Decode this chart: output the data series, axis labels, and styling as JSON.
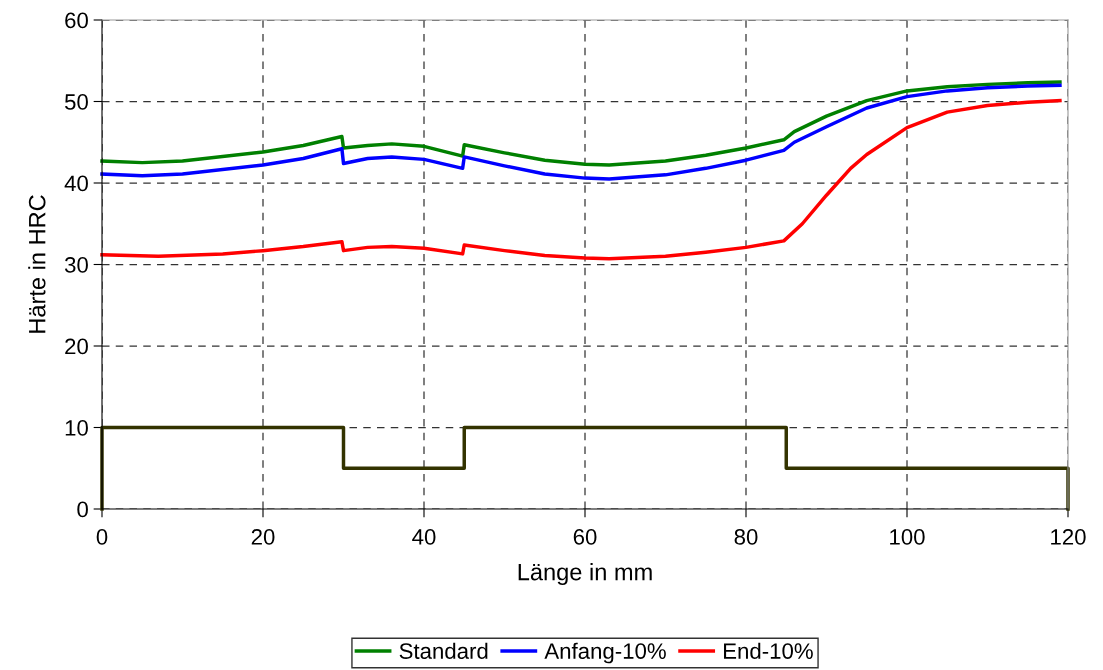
{
  "chart_data": {
    "type": "line",
    "xlabel": "Länge in mm",
    "ylabel": "Härte in HRC",
    "xlim": [
      0,
      120
    ],
    "xticks": [
      0,
      20,
      40,
      60,
      80,
      100,
      120
    ],
    "ylim": [
      0,
      60
    ],
    "yticks": [
      0,
      10,
      20,
      30,
      40,
      50,
      60
    ],
    "grid": true,
    "legend": "bottom",
    "marker": "none",
    "line_style": "solid",
    "series": [
      {
        "name": "Standard",
        "color": "#008000",
        "x": [
          0,
          5,
          10,
          20,
          25,
          29.8,
          30,
          33,
          36,
          40,
          44.8,
          45,
          50,
          55,
          60,
          63,
          70,
          75,
          80,
          84.7,
          86,
          90,
          95,
          100,
          105,
          110,
          115,
          119
        ],
        "values": [
          42.7,
          42.5,
          42.7,
          43.8,
          44.6,
          45.7,
          44.3,
          44.6,
          44.8,
          44.5,
          43.3,
          44.7,
          43.7,
          42.8,
          42.3,
          42.2,
          42.7,
          43.4,
          44.3,
          45.3,
          46.3,
          48.2,
          50.1,
          51.3,
          51.8,
          52.1,
          52.3,
          52.4
        ]
      },
      {
        "name": "Anfang-10%",
        "color": "#0000ff",
        "x": [
          0,
          5,
          10,
          20,
          25,
          29.8,
          30,
          33,
          36,
          40,
          44.8,
          45,
          50,
          55,
          60,
          63,
          70,
          75,
          80,
          84.7,
          86,
          90,
          95,
          100,
          105,
          110,
          115,
          119
        ],
        "values": [
          41.1,
          40.9,
          41.1,
          42.2,
          43.0,
          44.2,
          42.4,
          43.0,
          43.2,
          42.9,
          41.8,
          43.2,
          42.1,
          41.1,
          40.6,
          40.5,
          41.0,
          41.8,
          42.8,
          44.0,
          45.0,
          46.9,
          49.2,
          50.6,
          51.3,
          51.7,
          51.9,
          52.0
        ]
      },
      {
        "name": "End-10%",
        "color": "#ff0000",
        "x": [
          0,
          7,
          15,
          20,
          25,
          29.8,
          30,
          33,
          36,
          40,
          44.8,
          45,
          50,
          55,
          60,
          63,
          70,
          75,
          80,
          84.7,
          87,
          90,
          93,
          95,
          100,
          105,
          110,
          115,
          119
        ],
        "values": [
          31.2,
          31.0,
          31.3,
          31.7,
          32.2,
          32.8,
          31.7,
          32.1,
          32.2,
          32.0,
          31.3,
          32.4,
          31.7,
          31.1,
          30.8,
          30.7,
          31.0,
          31.5,
          32.1,
          32.9,
          35.0,
          38.5,
          41.8,
          43.5,
          46.8,
          48.7,
          49.5,
          49.9,
          50.1
        ]
      },
      {
        "color": "#333300",
        "x": [
          0,
          0,
          30,
          30,
          45,
          45,
          85,
          85,
          120,
          120
        ],
        "values": [
          0,
          10,
          10,
          5,
          5,
          10,
          10,
          5,
          5,
          0
        ]
      }
    ]
  }
}
